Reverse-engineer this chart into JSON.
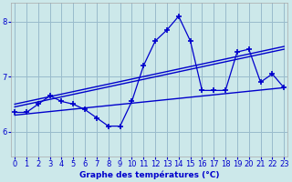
{
  "xlabel": "Graphe des températures (°C)",
  "background_color": "#cce8ea",
  "line_color": "#0000cc",
  "grid_color": "#99bbcc",
  "x_ticks": [
    0,
    1,
    2,
    3,
    4,
    5,
    6,
    7,
    8,
    9,
    10,
    11,
    12,
    13,
    14,
    15,
    16,
    17,
    18,
    19,
    20,
    21,
    22,
    23
  ],
  "y_ticks": [
    6,
    7,
    8
  ],
  "ylim": [
    5.55,
    8.35
  ],
  "xlim": [
    -0.3,
    23.3
  ],
  "main_data": {
    "x": [
      0,
      1,
      2,
      3,
      4,
      5,
      6,
      7,
      8,
      9,
      10,
      11,
      12,
      13,
      14,
      15,
      16,
      17,
      18,
      19,
      20,
      21,
      22,
      23
    ],
    "y": [
      6.35,
      6.35,
      6.5,
      6.65,
      6.55,
      6.5,
      6.4,
      6.25,
      6.1,
      6.1,
      6.55,
      7.2,
      7.65,
      7.85,
      8.1,
      7.65,
      6.75,
      6.75,
      6.75,
      7.45,
      7.5,
      6.9,
      7.05,
      6.8
    ]
  },
  "reg_line1": {
    "x": [
      0,
      23
    ],
    "y": [
      6.3,
      6.8
    ]
  },
  "reg_line2": {
    "x": [
      0,
      23
    ],
    "y": [
      6.45,
      7.5
    ]
  },
  "reg_line3": {
    "x": [
      0,
      23
    ],
    "y": [
      6.5,
      7.55
    ]
  }
}
